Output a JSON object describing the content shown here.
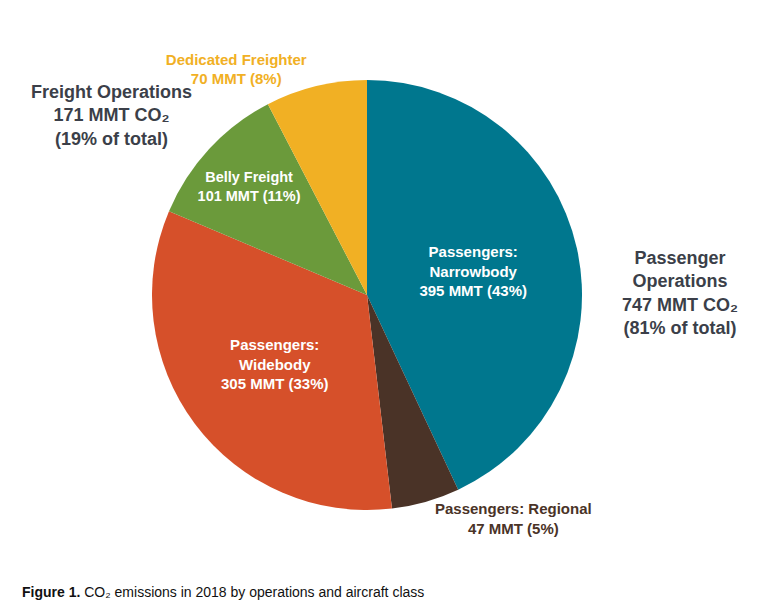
{
  "chart_data": {
    "type": "pie",
    "categories": [
      "Passengers: Narrowbody",
      "Passengers: Regional",
      "Passengers: Widebody",
      "Belly Freight",
      "Dedicated Freighter"
    ],
    "values": [
      395,
      47,
      305,
      101,
      70
    ],
    "value_labels": [
      "395 MMT (43%)",
      "47 MMT (5%)",
      "305 MMT (33%)",
      "101 MMT (11%)",
      "70 MMT (8%)"
    ],
    "colors": [
      "#00778e",
      "#4a3327",
      "#d6502a",
      "#6b9a3b",
      "#f1b024"
    ],
    "data_labels": true,
    "groups": [
      {
        "name": "Freight Operations",
        "value_label": "171 MMT CO₂ (19% of total)"
      },
      {
        "name": "Passenger Operations",
        "value_label": "747 MMT CO₂ (81% of total)"
      }
    ],
    "caption": {
      "label": "Figure 1.",
      "text": "CO₂ emissions in 2018 by operations and aircraft class"
    }
  }
}
